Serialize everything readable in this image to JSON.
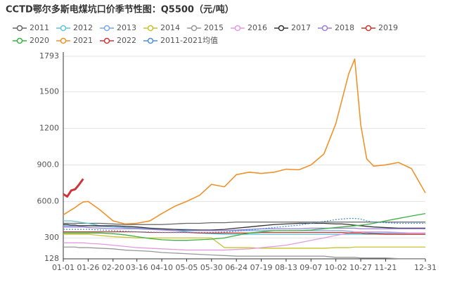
{
  "chart_data": {
    "type": "line",
    "title": "CCTD鄂尔多斯电煤坑口价季节性图：Q5500（元/吨）",
    "x": [
      0,
      4,
      8,
      12,
      16,
      20,
      25,
      37,
      50,
      62,
      74,
      87,
      99,
      112,
      124,
      137,
      149,
      162,
      174,
      187,
      199,
      212,
      224,
      237,
      249,
      262,
      274,
      280,
      287,
      293,
      299,
      305,
      312,
      324,
      337,
      350,
      364
    ],
    "xlim": [
      0,
      364
    ],
    "xticks": [
      {
        "value": 0,
        "label": "01-01"
      },
      {
        "value": 25,
        "label": "01-26"
      },
      {
        "value": 50,
        "label": "02-20"
      },
      {
        "value": 74,
        "label": "03-16"
      },
      {
        "value": 99,
        "label": "04-10"
      },
      {
        "value": 124,
        "label": "05-05"
      },
      {
        "value": 149,
        "label": "05-30"
      },
      {
        "value": 174,
        "label": "06-24"
      },
      {
        "value": 199,
        "label": "07-19"
      },
      {
        "value": 224,
        "label": "08-13"
      },
      {
        "value": 249,
        "label": "09-07"
      },
      {
        "value": 274,
        "label": "10-02"
      },
      {
        "value": 299,
        "label": "10-27"
      },
      {
        "value": 324,
        "label": "11-21"
      },
      {
        "value": 364,
        "label": "12-31"
      }
    ],
    "ylim": [
      128,
      1793
    ],
    "yticks": [
      128,
      300,
      {
        "value": 600,
        "label": "600.0"
      },
      {
        "value": 900,
        "label": "900.0"
      },
      1200,
      1500,
      1793
    ],
    "grid": true,
    "legend": "top-left",
    "series": [
      {
        "name": "2011",
        "color": "#666666",
        "values": [
          420,
          420,
          420,
          420,
          420,
          420,
          420,
          420,
          415,
          410,
          410,
          410,
          410,
          415,
          420,
          420,
          425,
          425,
          430,
          430,
          430,
          430,
          430,
          430,
          430,
          430,
          430,
          430,
          430,
          430,
          430,
          430,
          430,
          430,
          430,
          430,
          430
        ]
      },
      {
        "name": "2012",
        "color": "#5fc4d6",
        "values": [
          440,
          440,
          440,
          435,
          430,
          425,
          420,
          400,
          390,
          385,
          380,
          380,
          370,
          360,
          350,
          340,
          335,
          330,
          330,
          330,
          330,
          330,
          330,
          330,
          330,
          330,
          330,
          330,
          330,
          330,
          330,
          330,
          330,
          330,
          330,
          330,
          330
        ]
      },
      {
        "name": "2013",
        "color": "#7aa9e0",
        "values": [
          400,
          400,
          400,
          400,
          400,
          400,
          400,
          395,
          390,
          385,
          380,
          375,
          370,
          370,
          370,
          365,
          360,
          360,
          360,
          360,
          360,
          360,
          360,
          360,
          360,
          360,
          360,
          360,
          355,
          350,
          350,
          345,
          340,
          340,
          340,
          340,
          340
        ]
      },
      {
        "name": "2014",
        "color": "#c9c22c",
        "values": [
          330,
          330,
          330,
          330,
          330,
          330,
          330,
          320,
          310,
          305,
          300,
          300,
          300,
          300,
          300,
          300,
          300,
          220,
          220,
          220,
          215,
          215,
          215,
          215,
          215,
          215,
          220,
          220,
          220,
          225,
          225,
          225,
          225,
          225,
          225,
          225,
          225
        ]
      },
      {
        "name": "2015",
        "color": "#999999",
        "values": [
          225,
          225,
          225,
          225,
          220,
          220,
          220,
          215,
          210,
          200,
          195,
          190,
          180,
          175,
          170,
          165,
          160,
          155,
          150,
          150,
          150,
          150,
          150,
          150,
          150,
          150,
          140,
          140,
          140,
          140,
          135,
          135,
          135,
          135,
          130,
          130,
          130
        ]
      },
      {
        "name": "2016",
        "color": "#e39be0",
        "values": [
          260,
          260,
          260,
          260,
          260,
          260,
          255,
          250,
          240,
          230,
          220,
          215,
          210,
          205,
          200,
          200,
          200,
          200,
          205,
          210,
          220,
          230,
          240,
          260,
          280,
          300,
          320,
          330,
          340,
          350,
          350,
          350,
          350,
          350,
          345,
          340,
          340
        ]
      },
      {
        "name": "2017",
        "color": "#333333",
        "values": [
          410,
          410,
          405,
          405,
          400,
          400,
          400,
          400,
          400,
          395,
          390,
          380,
          375,
          370,
          365,
          365,
          365,
          370,
          380,
          390,
          400,
          410,
          415,
          420,
          420,
          420,
          415,
          415,
          410,
          405,
          400,
          395,
          390,
          385,
          380,
          380,
          380
        ]
      },
      {
        "name": "2018",
        "color": "#9b7fd4",
        "values": [
          390,
          390,
          390,
          390,
          390,
          390,
          385,
          380,
          375,
          375,
          375,
          370,
          365,
          360,
          360,
          360,
          360,
          360,
          365,
          370,
          375,
          375,
          375,
          375,
          380,
          380,
          380,
          380,
          380,
          380,
          375,
          375,
          375,
          375,
          375,
          375,
          375
        ]
      },
      {
        "name": "2019",
        "color": "#c0392b",
        "values": [
          350,
          350,
          350,
          350,
          350,
          350,
          350,
          350,
          350,
          350,
          350,
          345,
          345,
          345,
          345,
          340,
          340,
          340,
          340,
          340,
          345,
          345,
          345,
          345,
          345,
          345,
          345,
          345,
          340,
          340,
          340,
          335,
          335,
          330,
          330,
          330,
          330
        ]
      },
      {
        "name": "2020",
        "color": "#3cb043",
        "values": [
          340,
          340,
          340,
          340,
          340,
          340,
          340,
          340,
          335,
          325,
          310,
          295,
          285,
          280,
          280,
          285,
          290,
          300,
          320,
          340,
          350,
          360,
          360,
          360,
          365,
          375,
          385,
          390,
          395,
          400,
          405,
          410,
          420,
          440,
          460,
          480,
          500
        ]
      },
      {
        "name": "2021",
        "color": "#f0922b",
        "values": [
          490,
          510,
          530,
          550,
          575,
          595,
          600,
          530,
          440,
          415,
          420,
          440,
          500,
          560,
          600,
          650,
          740,
          720,
          820,
          840,
          830,
          840,
          865,
          860,
          900,
          990,
          1240,
          1430,
          1650,
          1770,
          1230,
          950,
          890,
          900,
          920,
          870,
          670
        ]
      },
      {
        "name": "2022",
        "color": "#d0343a",
        "values": [
          660,
          640,
          690,
          700,
          740,
          785,
          null,
          null,
          null,
          null,
          null,
          null,
          null,
          null,
          null,
          null,
          null,
          null,
          null,
          null,
          null,
          null,
          null,
          null,
          null,
          null,
          null,
          null,
          null,
          null,
          null,
          null,
          null,
          null,
          null,
          null,
          null
        ]
      },
      {
        "name": "2011-2021均值",
        "color": "#4a90d9",
        "dashed": true,
        "values": [
          370,
          370,
          370,
          370,
          370,
          370,
          370,
          365,
          360,
          355,
          350,
          348,
          345,
          345,
          345,
          345,
          345,
          348,
          355,
          365,
          375,
          385,
          395,
          405,
          420,
          435,
          450,
          455,
          460,
          460,
          455,
          440,
          430,
          425,
          420,
          420,
          420
        ]
      }
    ]
  }
}
